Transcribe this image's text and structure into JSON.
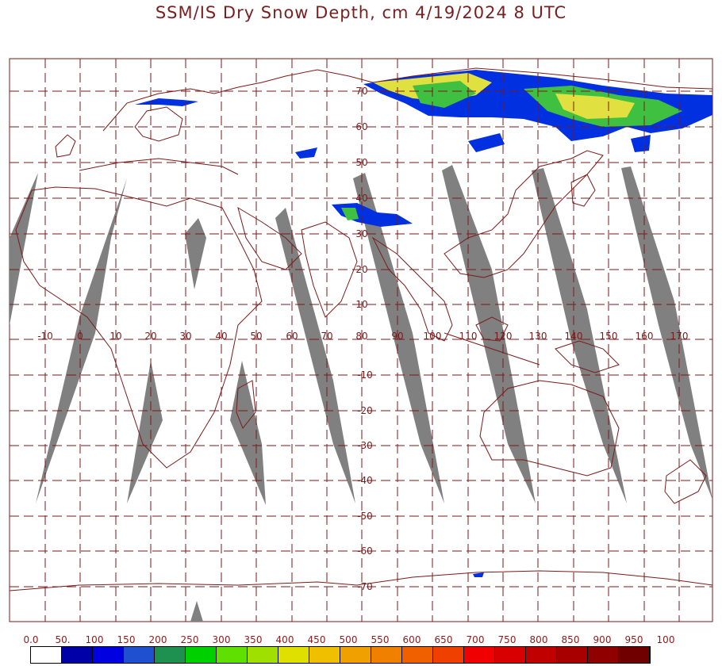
{
  "title": "SSM/IS Dry Snow Depth, cm 4/19/2024 8 UTC",
  "map": {
    "lon_labels": [
      "-10",
      "0",
      "10",
      "20",
      "30",
      "40",
      "50",
      "60",
      "70",
      "80",
      "90",
      "100",
      "110",
      "120",
      "130",
      "140",
      "150",
      "160",
      "170"
    ],
    "lat_labels": [
      "70",
      "60",
      "50",
      "40",
      "30",
      "20",
      "10",
      "-10",
      "-20",
      "-30",
      "-40",
      "-50",
      "-60",
      "-70"
    ],
    "grid_color": "#7a1a1a",
    "coast_color": "#7a1a1a",
    "swath_color": "#808080"
  },
  "legend": {
    "labels": [
      "0.0",
      "50.",
      "100",
      "150",
      "200",
      "250",
      "300",
      "350",
      "400",
      "450",
      "500",
      "550",
      "600",
      "650",
      "700",
      "750",
      "800",
      "850",
      "900",
      "950",
      "100"
    ],
    "colors": [
      "#ffffff",
      "#0000a8",
      "#0000e0",
      "#1e50d0",
      "#1e9050",
      "#00d000",
      "#60e000",
      "#a0e000",
      "#e0e000",
      "#f0c000",
      "#f0a000",
      "#f08000",
      "#f06000",
      "#f04000",
      "#f00000",
      "#d80000",
      "#c00000",
      "#a80000",
      "#900000",
      "#700000"
    ]
  }
}
